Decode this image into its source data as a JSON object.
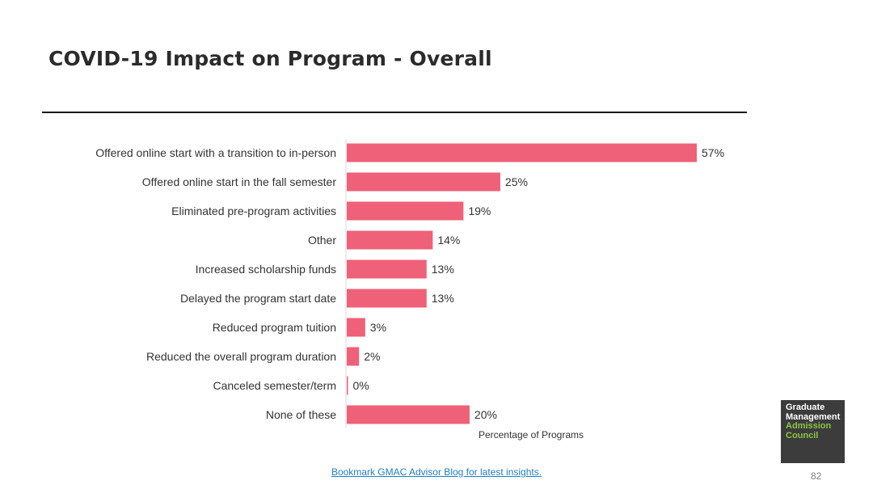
{
  "slide": {
    "title": "COVID-19 Impact on Program - Overall",
    "footer_link": "Bookmark GMAC Advisor Blog for latest insights.",
    "page_number": "82"
  },
  "logo": {
    "line1": "Graduate",
    "line2": "Management",
    "line3": "Admission",
    "line4": "Council"
  },
  "colors": {
    "bar": "#ef6178",
    "axis": "#d9d9d9",
    "link": "#1f7fc4",
    "logo_bg": "#3c3c3c",
    "logo_green": "#8cc63f"
  },
  "chart_data": {
    "type": "bar",
    "orientation": "horizontal",
    "categories": [
      "Offered online start with a transition to in-person",
      "Offered online start in the fall semester",
      "Eliminated pre-program activities",
      "Other",
      "Increased scholarship funds",
      "Delayed the program start date",
      "Reduced program tuition",
      "Reduced the overall program duration",
      "Canceled semester/term",
      "None of these"
    ],
    "values": [
      57,
      25,
      19,
      14,
      13,
      13,
      3,
      2,
      0,
      20
    ],
    "value_labels": [
      "57%",
      "25%",
      "19%",
      "14%",
      "13%",
      "13%",
      "3%",
      "2%",
      "0%",
      "20%"
    ],
    "xlabel": "Percentage of Programs",
    "ylabel": "",
    "xlim": [
      0,
      57
    ],
    "grid": false,
    "legend": "none"
  }
}
